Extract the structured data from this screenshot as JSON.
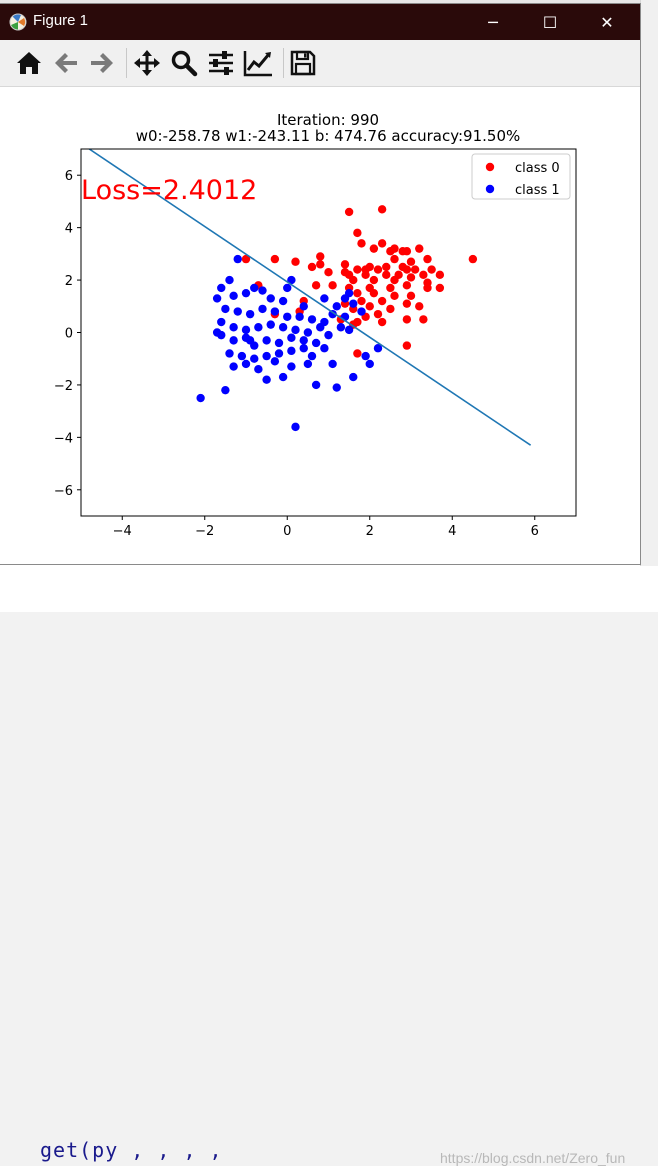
{
  "window": {
    "title": "Figure 1",
    "controls": {
      "minimize": "─",
      "maximize": "☐",
      "close": "✕"
    }
  },
  "toolbar": {
    "buttons": [
      "home-icon",
      "back-icon",
      "forward-icon",
      "pan-icon",
      "zoom-icon",
      "configure-subplots-icon",
      "edit-axis-icon",
      "save-icon"
    ]
  },
  "background_app": {
    "code_fragment": "get(py              ,      ,    ,  ,  ",
    "watermark": "https://blog.csdn.net/Zero_fun"
  },
  "chart_data": {
    "type": "scatter",
    "title_line1": "Iteration: 990",
    "title_line2": "w0:-258.78 w1:-243.11 b: 474.76 accuracy:91.50%",
    "annotation": "Loss=2.4012",
    "xlim": [
      -5,
      7
    ],
    "ylim": [
      -7,
      7
    ],
    "xticks": [
      -4,
      -2,
      0,
      2,
      4,
      6
    ],
    "yticks": [
      -6,
      -4,
      -2,
      0,
      2,
      4,
      6
    ],
    "xtick_labels": [
      "−4",
      "−2",
      "0",
      "2",
      "4",
      "6"
    ],
    "ytick_labels": [
      "−6",
      "−4",
      "−2",
      "0",
      "2",
      "4",
      "6"
    ],
    "legend_position": "top-right",
    "grid": false,
    "colors": {
      "class0": "#ff0000",
      "class1": "#0000ff",
      "line": "#1f77b4",
      "annotation": "#ff0000"
    },
    "decision_line": {
      "x": [
        -4.8,
        5.9
      ],
      "y": [
        7.0,
        -4.3
      ]
    },
    "series": [
      {
        "name": "class 0",
        "points": [
          [
            1.5,
            4.6
          ],
          [
            2.3,
            4.7
          ],
          [
            1.7,
            3.8
          ],
          [
            1.8,
            3.4
          ],
          [
            2.3,
            3.4
          ],
          [
            2.1,
            3.2
          ],
          [
            2.6,
            3.2
          ],
          [
            2.5,
            3.1
          ],
          [
            2.8,
            3.1
          ],
          [
            2.9,
            3.1
          ],
          [
            3.2,
            3.2
          ],
          [
            3.4,
            2.8
          ],
          [
            2.6,
            2.8
          ],
          [
            2.4,
            2.5
          ],
          [
            2.0,
            2.5
          ],
          [
            1.7,
            2.4
          ],
          [
            1.9,
            2.4
          ],
          [
            2.2,
            2.4
          ],
          [
            2.9,
            2.4
          ],
          [
            3.1,
            2.4
          ],
          [
            3.5,
            2.4
          ],
          [
            1.4,
            2.3
          ],
          [
            1.0,
            2.3
          ],
          [
            0.8,
            2.6
          ],
          [
            0.6,
            2.5
          ],
          [
            0.2,
            2.7
          ],
          [
            0.8,
            2.9
          ],
          [
            1.5,
            2.2
          ],
          [
            1.9,
            2.2
          ],
          [
            2.4,
            2.2
          ],
          [
            2.7,
            2.2
          ],
          [
            3.3,
            2.2
          ],
          [
            3.7,
            2.2
          ],
          [
            1.6,
            2.0
          ],
          [
            2.1,
            2.0
          ],
          [
            2.6,
            2.0
          ],
          [
            3.0,
            2.1
          ],
          [
            3.4,
            1.9
          ],
          [
            0.7,
            1.8
          ],
          [
            1.1,
            1.8
          ],
          [
            1.5,
            1.7
          ],
          [
            2.0,
            1.7
          ],
          [
            2.5,
            1.7
          ],
          [
            2.9,
            1.8
          ],
          [
            3.4,
            1.7
          ],
          [
            3.7,
            1.7
          ],
          [
            1.7,
            1.5
          ],
          [
            2.1,
            1.5
          ],
          [
            2.6,
            1.4
          ],
          [
            3.0,
            1.4
          ],
          [
            2.3,
            1.2
          ],
          [
            1.8,
            1.2
          ],
          [
            1.4,
            1.1
          ],
          [
            2.9,
            1.1
          ],
          [
            3.2,
            1.0
          ],
          [
            2.0,
            1.0
          ],
          [
            1.6,
            0.9
          ],
          [
            2.5,
            0.9
          ],
          [
            2.2,
            0.7
          ],
          [
            1.9,
            0.6
          ],
          [
            1.3,
            0.5
          ],
          [
            1.7,
            0.4
          ],
          [
            2.3,
            0.4
          ],
          [
            2.9,
            0.5
          ],
          [
            1.6,
            0.3
          ],
          [
            0.3,
            0.8
          ],
          [
            0.4,
            1.2
          ],
          [
            -0.3,
            0.7
          ],
          [
            -0.3,
            2.8
          ],
          [
            -1.0,
            2.8
          ],
          [
            -0.7,
            1.8
          ],
          [
            4.5,
            2.8
          ],
          [
            3.3,
            0.5
          ],
          [
            2.9,
            -0.5
          ],
          [
            1.7,
            -0.8
          ],
          [
            1.4,
            2.6
          ],
          [
            3.0,
            2.7
          ],
          [
            2.8,
            2.5
          ]
        ]
      },
      {
        "name": "class 1",
        "points": [
          [
            -1.2,
            2.8
          ],
          [
            -1.4,
            2.0
          ],
          [
            -1.6,
            1.7
          ],
          [
            -1.7,
            1.3
          ],
          [
            -1.3,
            1.4
          ],
          [
            -1.0,
            1.5
          ],
          [
            -0.8,
            1.7
          ],
          [
            -0.6,
            1.6
          ],
          [
            -0.4,
            1.3
          ],
          [
            0.1,
            2.0
          ],
          [
            -0.1,
            1.2
          ],
          [
            0.4,
            1.0
          ],
          [
            0.9,
            1.3
          ],
          [
            1.2,
            1.0
          ],
          [
            1.4,
            1.3
          ],
          [
            1.6,
            1.1
          ],
          [
            -1.5,
            0.9
          ],
          [
            -1.2,
            0.8
          ],
          [
            -0.9,
            0.7
          ],
          [
            -0.6,
            0.9
          ],
          [
            -0.3,
            0.8
          ],
          [
            0.0,
            0.6
          ],
          [
            0.3,
            0.6
          ],
          [
            0.6,
            0.5
          ],
          [
            0.9,
            0.4
          ],
          [
            1.1,
            0.7
          ],
          [
            1.4,
            0.6
          ],
          [
            1.5,
            1.5
          ],
          [
            1.3,
            0.2
          ],
          [
            -1.6,
            0.4
          ],
          [
            -1.3,
            0.2
          ],
          [
            -1.0,
            0.1
          ],
          [
            -0.7,
            0.2
          ],
          [
            -0.4,
            0.3
          ],
          [
            -0.1,
            0.2
          ],
          [
            0.2,
            0.1
          ],
          [
            0.5,
            0.0
          ],
          [
            0.8,
            0.2
          ],
          [
            1.0,
            -0.1
          ],
          [
            1.5,
            0.1
          ],
          [
            -1.6,
            -0.1
          ],
          [
            -1.3,
            -0.3
          ],
          [
            -1.0,
            -0.2
          ],
          [
            -0.8,
            -0.5
          ],
          [
            -0.5,
            -0.3
          ],
          [
            -0.2,
            -0.4
          ],
          [
            0.1,
            -0.2
          ],
          [
            0.4,
            -0.3
          ],
          [
            0.7,
            -0.4
          ],
          [
            0.9,
            -0.6
          ],
          [
            -1.4,
            -0.8
          ],
          [
            -1.1,
            -0.9
          ],
          [
            -0.8,
            -1.0
          ],
          [
            -0.5,
            -0.9
          ],
          [
            -0.2,
            -0.8
          ],
          [
            0.1,
            -0.7
          ],
          [
            0.4,
            -0.6
          ],
          [
            0.6,
            -0.9
          ],
          [
            1.1,
            -1.2
          ],
          [
            -1.3,
            -1.3
          ],
          [
            -1.0,
            -1.2
          ],
          [
            -0.7,
            -1.4
          ],
          [
            -0.3,
            -1.1
          ],
          [
            0.1,
            -1.3
          ],
          [
            0.5,
            -1.2
          ],
          [
            -1.5,
            -2.2
          ],
          [
            -2.1,
            -2.5
          ],
          [
            -0.5,
            -1.8
          ],
          [
            -0.1,
            -1.7
          ],
          [
            0.7,
            -2.0
          ],
          [
            1.2,
            -2.1
          ],
          [
            1.6,
            -1.7
          ],
          [
            2.0,
            -1.2
          ],
          [
            0.2,
            -3.6
          ],
          [
            2.2,
            -0.6
          ],
          [
            1.9,
            -0.9
          ],
          [
            0.0,
            1.7
          ],
          [
            -1.7,
            0.0
          ],
          [
            -0.9,
            -0.3
          ],
          [
            1.8,
            0.8
          ]
        ]
      }
    ]
  }
}
